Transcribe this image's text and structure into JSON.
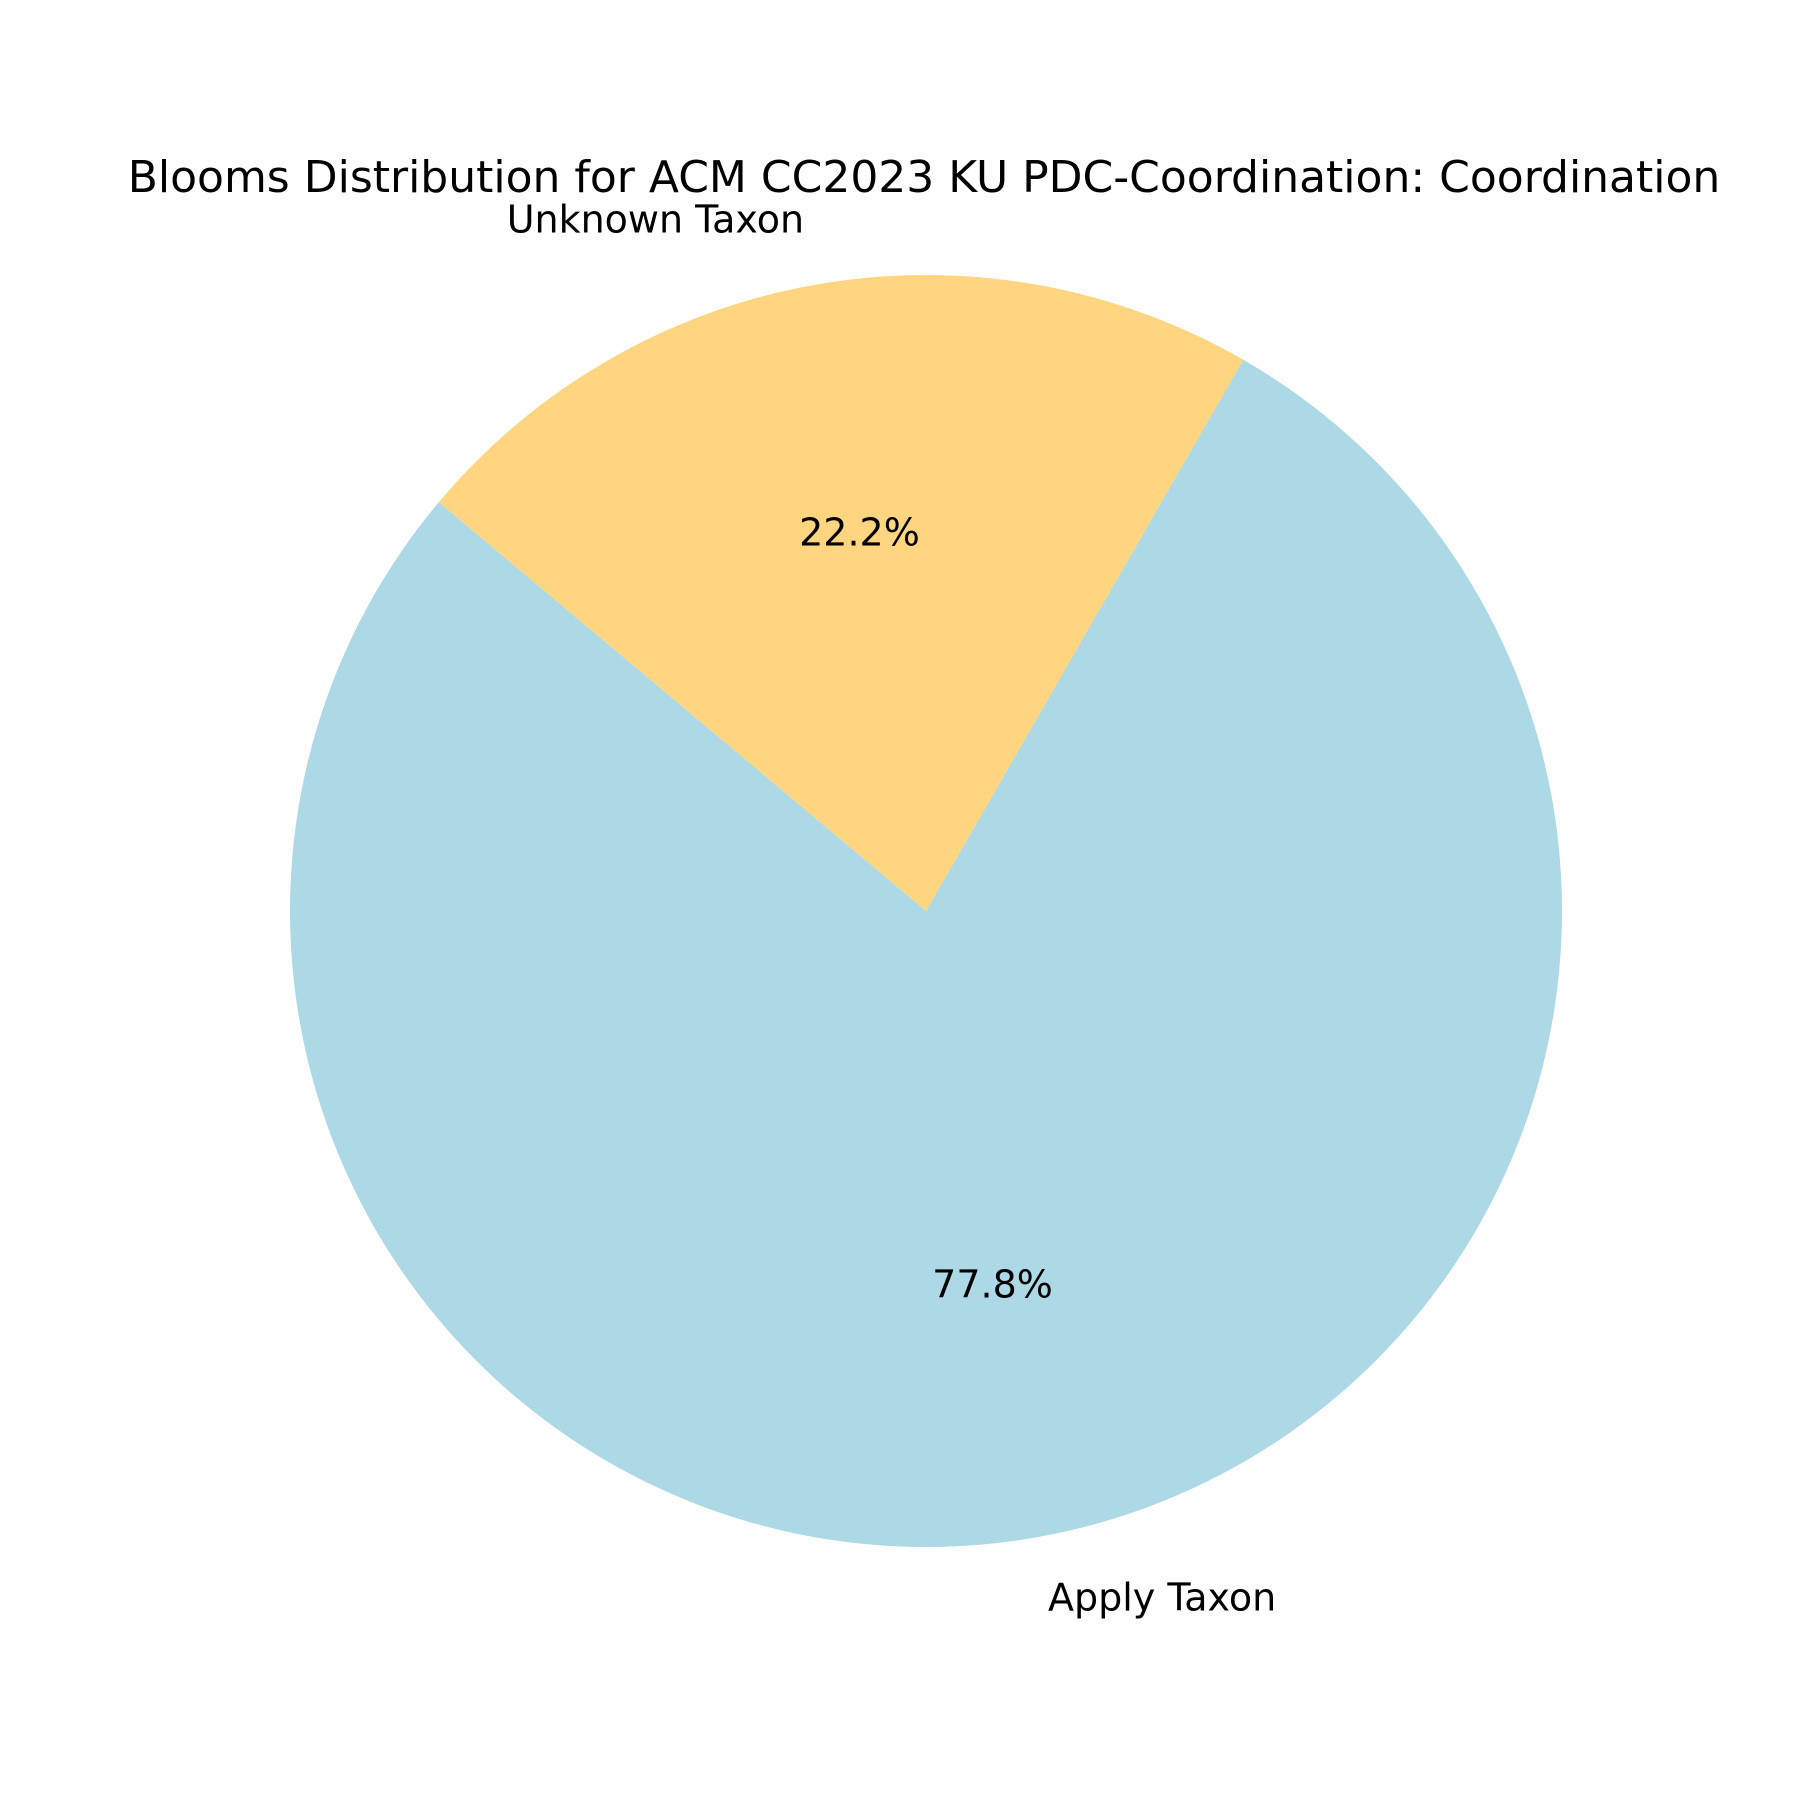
{
  "chart_data": {
    "type": "pie",
    "title": "Blooms Distribution for ACM CC2023 KU PDC-Coordination: Coordination",
    "slices": [
      {
        "label": "Apply Taxon",
        "value": 77.8,
        "pct_label": "77.8%",
        "color": "#add8e6"
      },
      {
        "label": "Unknown Taxon",
        "value": 22.2,
        "pct_label": "22.2%",
        "color": "#ffd580"
      }
    ],
    "legend": "none"
  }
}
